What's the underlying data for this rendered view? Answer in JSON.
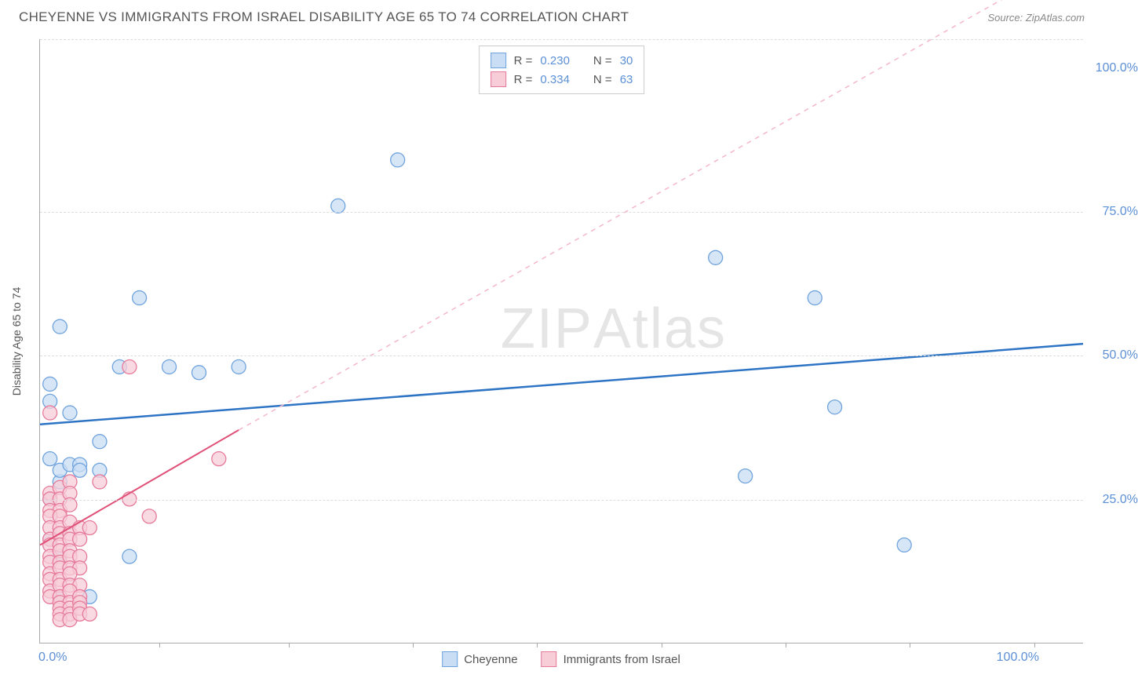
{
  "title": "CHEYENNE VS IMMIGRANTS FROM ISRAEL DISABILITY AGE 65 TO 74 CORRELATION CHART",
  "source": "Source: ZipAtlas.com",
  "watermark": {
    "part1": "ZIP",
    "part2": "Atlas"
  },
  "chart": {
    "type": "scatter",
    "ylabel": "Disability Age 65 to 74",
    "xlim": [
      0,
      105
    ],
    "ylim": [
      0,
      105
    ],
    "background_color": "#ffffff",
    "grid_color": "#dddddd",
    "grid_dash": true,
    "axis_color": "#aaaaaa",
    "y_gridlines": [
      25,
      50,
      75,
      105
    ],
    "x_ticks": [
      12,
      25,
      37.5,
      50,
      62.5,
      75,
      87.5,
      100
    ],
    "y_tick_labels": [
      {
        "value": 25,
        "label": "25.0%"
      },
      {
        "value": 50,
        "label": "50.0%"
      },
      {
        "value": 75,
        "label": "75.0%"
      },
      {
        "value": 100,
        "label": "100.0%"
      }
    ],
    "x_tick_labels": [
      {
        "value": 0,
        "label": "0.0%",
        "anchor": "start"
      },
      {
        "value": 100,
        "label": "100.0%",
        "anchor": "end"
      }
    ],
    "series": [
      {
        "id": "cheyenne",
        "label": "Cheyenne",
        "fill": "#c9ddf4",
        "stroke": "#6fa3dd",
        "marker_radius": 9,
        "marker_opacity": 0.75,
        "trend": {
          "color": "#2e74c4",
          "dash": false,
          "width": 2.5,
          "x1": 0,
          "y1": 38,
          "x2": 105,
          "y2": 52
        },
        "stats": {
          "r": "0.230",
          "n": "30"
        },
        "points": [
          [
            1,
            42
          ],
          [
            2,
            55
          ],
          [
            3,
            40
          ],
          [
            8,
            48
          ],
          [
            10,
            60
          ],
          [
            13,
            48
          ],
          [
            16,
            47
          ],
          [
            20,
            48
          ],
          [
            2,
            28
          ],
          [
            1,
            32
          ],
          [
            6,
            35
          ],
          [
            2,
            30
          ],
          [
            3,
            31
          ],
          [
            4,
            31
          ],
          [
            1,
            25
          ],
          [
            1,
            18
          ],
          [
            9,
            15
          ],
          [
            2,
            15
          ],
          [
            2,
            8
          ],
          [
            5,
            8
          ],
          [
            30,
            76
          ],
          [
            36,
            84
          ],
          [
            68,
            67
          ],
          [
            78,
            60
          ],
          [
            71,
            29
          ],
          [
            80,
            41
          ],
          [
            87,
            17
          ],
          [
            1,
            45
          ],
          [
            4,
            30
          ],
          [
            6,
            30
          ]
        ]
      },
      {
        "id": "israel",
        "label": "Immigrants from Israel",
        "fill": "#f7cdd8",
        "stroke": "#e67a9a",
        "marker_radius": 9,
        "marker_opacity": 0.75,
        "trend": {
          "color": "#e05078",
          "dash": false,
          "width": 2,
          "x1": 0,
          "y1": 17,
          "x2": 20,
          "y2": 37
        },
        "trend_ext": {
          "color": "#f4b7c7",
          "dash": true,
          "width": 1.5,
          "x1": 20,
          "y1": 37,
          "x2": 100,
          "y2": 115
        },
        "stats": {
          "r": "0.334",
          "n": "63"
        },
        "points": [
          [
            1,
            40
          ],
          [
            9,
            48
          ],
          [
            1,
            26
          ],
          [
            2,
            27
          ],
          [
            3,
            28
          ],
          [
            1,
            25
          ],
          [
            2,
            25
          ],
          [
            3,
            26
          ],
          [
            1,
            23
          ],
          [
            2,
            23
          ],
          [
            3,
            24
          ],
          [
            1,
            22
          ],
          [
            2,
            22
          ],
          [
            1,
            20
          ],
          [
            2,
            20
          ],
          [
            3,
            21
          ],
          [
            6,
            28
          ],
          [
            9,
            25
          ],
          [
            1,
            18
          ],
          [
            2,
            19
          ],
          [
            3,
            19
          ],
          [
            4,
            20
          ],
          [
            5,
            20
          ],
          [
            1,
            17
          ],
          [
            2,
            17
          ],
          [
            3,
            18
          ],
          [
            4,
            18
          ],
          [
            1,
            15
          ],
          [
            2,
            16
          ],
          [
            3,
            16
          ],
          [
            1,
            14
          ],
          [
            2,
            14
          ],
          [
            3,
            15
          ],
          [
            4,
            15
          ],
          [
            1,
            12
          ],
          [
            2,
            13
          ],
          [
            3,
            13
          ],
          [
            4,
            13
          ],
          [
            1,
            11
          ],
          [
            2,
            11
          ],
          [
            3,
            12
          ],
          [
            1,
            9
          ],
          [
            2,
            10
          ],
          [
            3,
            10
          ],
          [
            4,
            10
          ],
          [
            1,
            8
          ],
          [
            2,
            8
          ],
          [
            3,
            9
          ],
          [
            2,
            7
          ],
          [
            3,
            7
          ],
          [
            4,
            8
          ],
          [
            2,
            6
          ],
          [
            3,
            6
          ],
          [
            4,
            7
          ],
          [
            2,
            5
          ],
          [
            3,
            5
          ],
          [
            4,
            6
          ],
          [
            2,
            4
          ],
          [
            3,
            4
          ],
          [
            4,
            5
          ],
          [
            5,
            5
          ],
          [
            18,
            32
          ],
          [
            11,
            22
          ]
        ]
      }
    ],
    "legend_top": {
      "r_label": "R =",
      "n_label": "N ="
    },
    "legend_bottom_items": [
      "cheyenne",
      "israel"
    ]
  }
}
